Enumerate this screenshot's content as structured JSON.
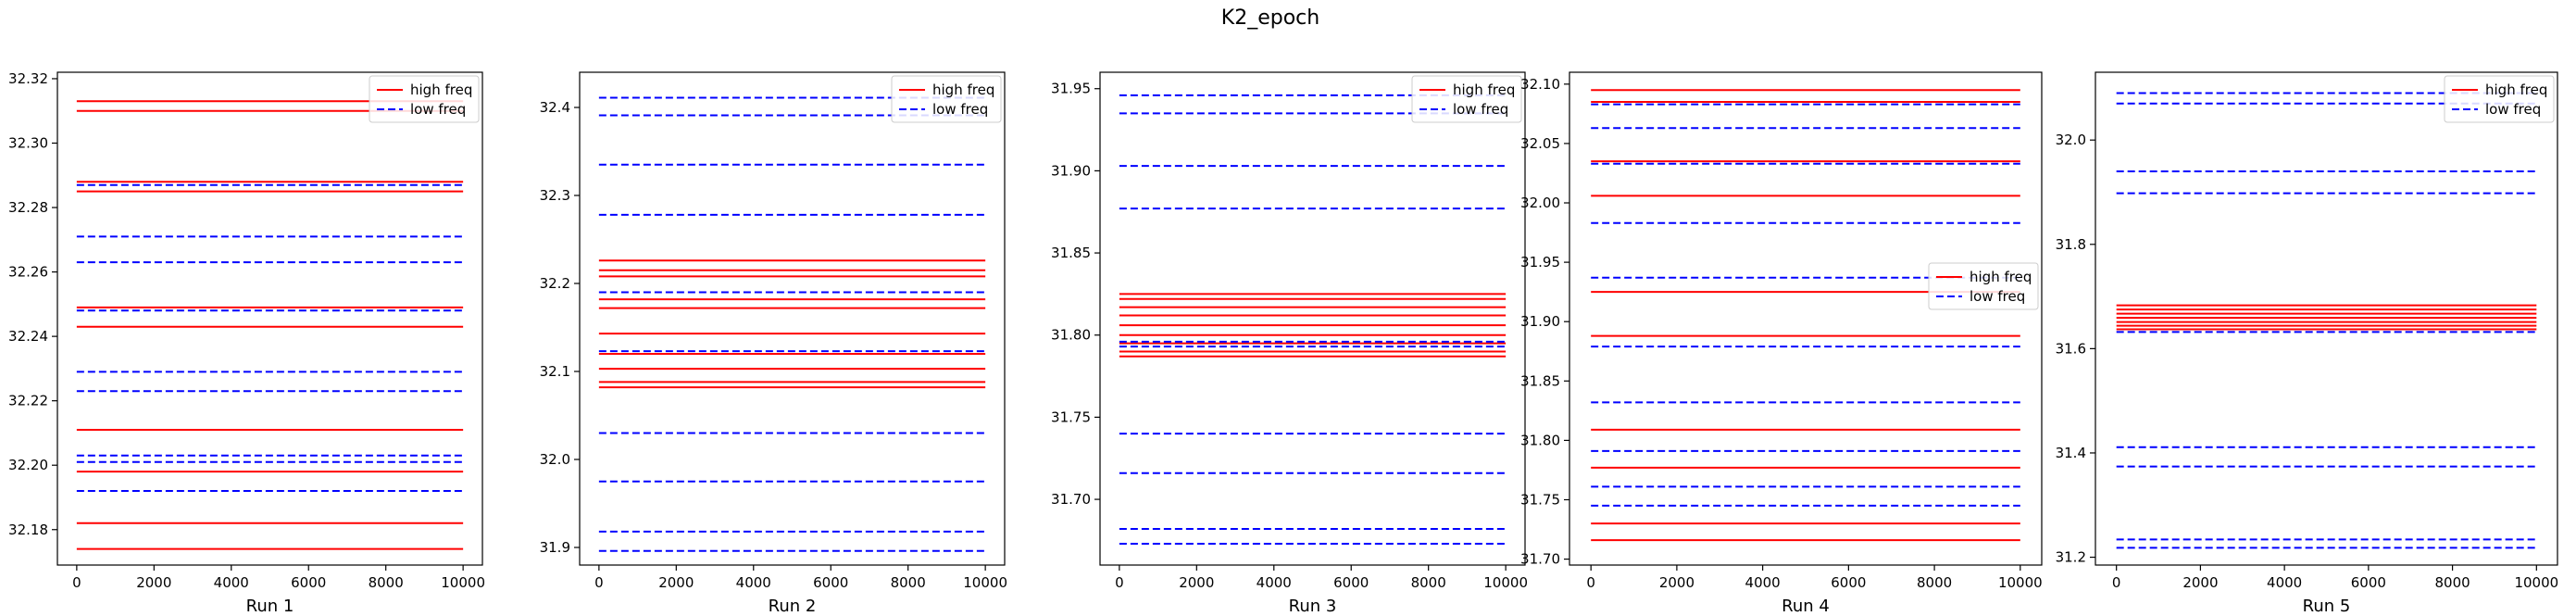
{
  "figure_title": "K2_epoch",
  "chart_data": [
    {
      "type": "line",
      "xlabel": "Run 1",
      "xlim": [
        -500,
        10500
      ],
      "ylim": [
        32.169,
        32.322
      ],
      "xticks": [
        0,
        2000,
        4000,
        6000,
        8000,
        10000
      ],
      "yticks": [
        32.18,
        32.2,
        32.22,
        32.24,
        32.26,
        32.28,
        32.3,
        32.32
      ],
      "ytick_decimals": 2,
      "legend": "top-right",
      "series": [
        {
          "name": "high freq",
          "color": "#ff0000",
          "style": "solid",
          "levels": [
            32.313,
            32.31,
            32.288,
            32.285,
            32.249,
            32.243,
            32.211,
            32.198,
            32.182,
            32.174
          ]
        },
        {
          "name": "low freq",
          "color": "#0000ff",
          "style": "dashed",
          "levels": [
            32.287,
            32.271,
            32.263,
            32.248,
            32.229,
            32.223,
            32.203,
            32.201,
            32.192
          ]
        }
      ],
      "x": [
        0,
        10000
      ]
    },
    {
      "type": "line",
      "xlabel": "Run 2",
      "xlim": [
        -500,
        10500
      ],
      "ylim": [
        31.88,
        32.44
      ],
      "xticks": [
        0,
        2000,
        4000,
        6000,
        8000,
        10000
      ],
      "yticks": [
        31.9,
        32.0,
        32.1,
        32.2,
        32.3,
        32.4
      ],
      "ytick_decimals": 1,
      "legend": "top-right",
      "series": [
        {
          "name": "high freq",
          "color": "#ff0000",
          "style": "solid",
          "levels": [
            32.226,
            32.215,
            32.208,
            32.182,
            32.172,
            32.143,
            32.12,
            32.103,
            32.088,
            32.082
          ]
        },
        {
          "name": "low freq",
          "color": "#0000ff",
          "style": "dashed",
          "levels": [
            32.411,
            32.391,
            32.335,
            32.278,
            32.19,
            32.123,
            32.03,
            31.975,
            31.918,
            31.896
          ]
        }
      ],
      "x": [
        0,
        10000
      ]
    },
    {
      "type": "line",
      "xlabel": "Run 3",
      "xlim": [
        -500,
        10500
      ],
      "ylim": [
        31.66,
        31.96
      ],
      "xticks": [
        0,
        2000,
        4000,
        6000,
        8000,
        10000
      ],
      "yticks": [
        31.7,
        31.75,
        31.8,
        31.85,
        31.9,
        31.95
      ],
      "ytick_decimals": 2,
      "legend": "top-right",
      "series": [
        {
          "name": "high freq",
          "color": "#ff0000",
          "style": "solid",
          "levels": [
            31.825,
            31.822,
            31.817,
            31.812,
            31.806,
            31.8,
            31.795,
            31.79,
            31.787
          ]
        },
        {
          "name": "low freq",
          "color": "#0000ff",
          "style": "dashed",
          "levels": [
            31.946,
            31.935,
            31.903,
            31.877,
            31.796,
            31.793,
            31.74,
            31.716,
            31.682,
            31.673
          ]
        }
      ],
      "x": [
        0,
        10000
      ]
    },
    {
      "type": "line",
      "xlabel": "Run 4",
      "xlim": [
        -500,
        10500
      ],
      "ylim": [
        31.695,
        32.11
      ],
      "xticks": [
        0,
        2000,
        4000,
        6000,
        8000,
        10000
      ],
      "yticks": [
        31.7,
        31.75,
        31.8,
        31.85,
        31.9,
        31.95,
        32.0,
        32.05,
        32.1
      ],
      "ytick_decimals": 2,
      "legend": "center-right",
      "series": [
        {
          "name": "high freq",
          "color": "#ff0000",
          "style": "solid",
          "levels": [
            32.095,
            32.085,
            32.035,
            32.006,
            31.925,
            31.888,
            31.809,
            31.777,
            31.73,
            31.716
          ]
        },
        {
          "name": "low freq",
          "color": "#0000ff",
          "style": "dashed",
          "levels": [
            32.083,
            32.063,
            32.033,
            31.983,
            31.937,
            31.879,
            31.832,
            31.791,
            31.761,
            31.745
          ]
        }
      ],
      "x": [
        0,
        10000
      ]
    },
    {
      "type": "line",
      "xlabel": "Run 5",
      "xlim": [
        -500,
        10500
      ],
      "ylim": [
        31.185,
        32.13
      ],
      "xticks": [
        0,
        2000,
        4000,
        6000,
        8000,
        10000
      ],
      "yticks": [
        31.2,
        31.4,
        31.6,
        31.8,
        32.0
      ],
      "ytick_decimals": 1,
      "legend": "top-right",
      "series": [
        {
          "name": "high freq",
          "color": "#ff0000",
          "style": "solid",
          "levels": [
            31.683,
            31.675,
            31.667,
            31.659,
            31.651,
            31.644,
            31.637
          ]
        },
        {
          "name": "low freq",
          "color": "#0000ff",
          "style": "dashed",
          "levels": [
            32.09,
            32.07,
            31.94,
            31.898,
            31.632,
            31.411,
            31.374,
            31.234,
            31.218
          ]
        }
      ],
      "x": [
        0,
        10000
      ]
    }
  ]
}
